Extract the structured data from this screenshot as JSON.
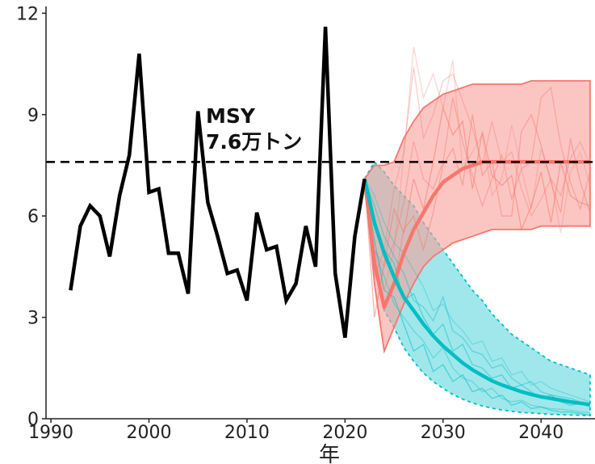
{
  "chart_data": {
    "type": "line",
    "title": "",
    "xlabel": "年",
    "ylabel": "",
    "xlim": [
      1989.5,
      2045.5
    ],
    "ylim": [
      0,
      12.2
    ],
    "x_ticks": [
      1990,
      2000,
      2010,
      2020,
      2030,
      2040
    ],
    "y_ticks": [
      0,
      3,
      6,
      9,
      12
    ],
    "grid": false,
    "legend": "none",
    "colors": {
      "history": "#000000",
      "msy_scenario": "#f8766d",
      "current_scenario": "#00bfc4",
      "msy_band": "#f8a09a",
      "current_band": "#5fd7dd"
    },
    "msy_line": {
      "value": 7.6,
      "label_line1": "MSY",
      "label_line2": "7.6万トン"
    },
    "history": {
      "x": [
        1992,
        1993,
        1994,
        1995,
        1996,
        1997,
        1998,
        1999,
        2000,
        2001,
        2002,
        2003,
        2004,
        2005,
        2006,
        2007,
        2008,
        2009,
        2010,
        2011,
        2012,
        2013,
        2014,
        2015,
        2016,
        2017,
        2018,
        2019,
        2020,
        2021,
        2022
      ],
      "y": [
        3.8,
        5.7,
        6.3,
        6.0,
        4.8,
        6.6,
        7.8,
        10.8,
        6.7,
        6.8,
        4.9,
        4.9,
        3.7,
        9.1,
        6.4,
        5.4,
        4.3,
        4.4,
        3.5,
        6.1,
        5.0,
        5.1,
        3.5,
        4.0,
        5.7,
        4.5,
        11.6,
        4.3,
        2.4,
        5.4,
        7.1
      ]
    },
    "scenarios": [
      {
        "key": "msy",
        "x": [
          2022,
          2023,
          2024,
          2025,
          2026,
          2027,
          2028,
          2029,
          2030,
          2031,
          2032,
          2033,
          2034,
          2035,
          2036,
          2037,
          2038,
          2039,
          2040,
          2041,
          2042,
          2043,
          2044,
          2045
        ],
        "mean": [
          7.1,
          4.6,
          3.3,
          4.0,
          4.9,
          5.6,
          6.1,
          6.6,
          7.0,
          7.2,
          7.4,
          7.5,
          7.6,
          7.6,
          7.6,
          7.6,
          7.6,
          7.6,
          7.6,
          7.6,
          7.6,
          7.6,
          7.6,
          7.6
        ],
        "lower": [
          7.1,
          4.0,
          2.0,
          2.7,
          3.4,
          4.0,
          4.5,
          4.8,
          5.0,
          5.2,
          5.3,
          5.4,
          5.5,
          5.6,
          5.6,
          5.6,
          5.6,
          5.6,
          5.7,
          5.7,
          5.7,
          5.7,
          5.7,
          5.7
        ],
        "upper": [
          7.1,
          7.5,
          7.5,
          7.6,
          8.3,
          8.8,
          9.2,
          9.4,
          9.6,
          9.7,
          9.8,
          9.9,
          9.9,
          9.9,
          9.9,
          9.9,
          9.9,
          10.0,
          10.0,
          10.0,
          10.0,
          10.0,
          10.0,
          10.0
        ],
        "samples": [
          [
            7.1,
            3.0,
            4.6,
            6.2,
            5.5,
            7.1,
            6.2,
            7.6,
            9.2,
            8.4,
            8.8,
            6.8,
            8.5,
            7.2,
            6.9,
            7.2,
            5.6,
            6.3,
            7.3,
            5.8,
            7.6,
            6.6,
            6.4,
            6.3
          ],
          [
            7.1,
            4.8,
            3.3,
            4.0,
            5.6,
            6.0,
            5.0,
            6.1,
            7.5,
            8.0,
            6.9,
            9.0,
            7.2,
            7.6,
            6.0,
            6.0,
            8.5,
            9.0,
            8.1,
            7.0,
            6.1,
            8.3,
            7.0,
            6.1
          ],
          [
            7.1,
            5.0,
            4.5,
            5.2,
            6.4,
            8.2,
            7.1,
            6.8,
            7.6,
            9.5,
            8.2,
            7.2,
            6.3,
            7.1,
            7.8,
            6.5,
            7.4,
            7.6,
            9.5,
            9.8,
            8.1,
            7.0,
            6.2,
            7.3
          ],
          [
            7.1,
            4.2,
            5.0,
            6.8,
            7.9,
            10.4,
            8.3,
            9.0,
            10.0,
            10.2,
            9.4,
            8.6,
            7.5,
            8.8,
            7.6,
            7.9,
            6.8,
            6.0,
            6.5,
            7.1,
            6.6,
            7.7,
            8.2,
            7.5
          ],
          [
            7.1,
            4.9,
            3.8,
            5.0,
            7.8,
            11.0,
            9.5,
            10.2,
            9.2,
            10.6,
            7.4,
            7.9,
            8.4,
            6.6,
            7.1,
            8.7,
            7.4,
            6.2,
            8.0,
            7.1,
            5.5,
            7.3,
            7.9,
            6.9
          ]
        ]
      },
      {
        "key": "current",
        "x": [
          2022,
          2023,
          2024,
          2025,
          2026,
          2027,
          2028,
          2029,
          2030,
          2031,
          2032,
          2033,
          2034,
          2035,
          2036,
          2037,
          2038,
          2039,
          2040,
          2041,
          2042,
          2043,
          2044,
          2045
        ],
        "mean": [
          7.1,
          5.8,
          4.9,
          4.2,
          3.6,
          3.2,
          2.8,
          2.45,
          2.15,
          1.9,
          1.65,
          1.45,
          1.28,
          1.12,
          1.0,
          0.9,
          0.8,
          0.72,
          0.65,
          0.6,
          0.55,
          0.5,
          0.46,
          0.42
        ],
        "lower": [
          7.1,
          4.6,
          3.2,
          2.7,
          2.1,
          1.7,
          1.35,
          1.1,
          0.9,
          0.72,
          0.58,
          0.47,
          0.38,
          0.31,
          0.26,
          0.22,
          0.19,
          0.17,
          0.15,
          0.13,
          0.12,
          0.11,
          0.1,
          0.09
        ],
        "upper": [
          7.1,
          7.6,
          7.3,
          6.9,
          6.6,
          6.3,
          5.8,
          5.4,
          5.0,
          4.6,
          4.2,
          3.8,
          3.5,
          3.1,
          2.8,
          2.5,
          2.3,
          2.1,
          1.9,
          1.7,
          1.6,
          1.5,
          1.4,
          1.3
        ],
        "samples": [
          [
            7.1,
            5.3,
            3.8,
            3.6,
            2.8,
            2.0,
            2.2,
            1.4,
            1.6,
            1.1,
            1.3,
            0.8,
            0.9,
            0.6,
            0.7,
            0.4,
            0.5,
            0.3,
            0.35,
            0.25,
            0.2,
            0.2,
            0.15,
            0.1
          ],
          [
            7.1,
            5.8,
            5.0,
            4.6,
            3.5,
            3.7,
            3.0,
            2.5,
            2.8,
            2.0,
            2.2,
            1.6,
            1.5,
            1.2,
            1.3,
            0.9,
            1.0,
            0.8,
            0.6,
            0.7,
            0.5,
            0.4,
            0.45,
            0.35
          ],
          [
            7.1,
            6.3,
            5.4,
            4.8,
            4.3,
            3.5,
            3.3,
            2.9,
            3.6,
            2.6,
            2.4,
            2.0,
            1.9,
            1.5,
            1.6,
            1.2,
            1.0,
            1.1,
            0.8,
            0.7,
            0.65,
            0.6,
            0.5,
            0.45
          ],
          [
            7.1,
            5.0,
            4.2,
            3.4,
            3.0,
            2.6,
            2.3,
            1.8,
            2.1,
            1.5,
            1.2,
            1.1,
            0.8,
            0.9,
            0.6,
            0.5,
            0.55,
            0.4,
            0.35,
            0.3,
            0.28,
            0.25,
            0.2,
            0.18
          ],
          [
            7.1,
            6.6,
            5.8,
            5.2,
            4.9,
            4.4,
            3.9,
            3.2,
            3.4,
            2.9,
            2.6,
            2.2,
            2.3,
            1.7,
            1.8,
            1.3,
            1.4,
            1.0,
            1.1,
            0.9,
            0.8,
            0.7,
            0.6,
            0.5
          ]
        ]
      }
    ]
  }
}
